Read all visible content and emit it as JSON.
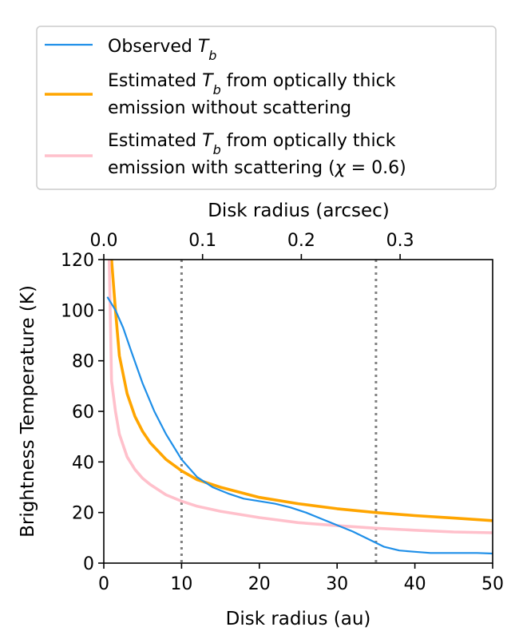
{
  "chart_data": {
    "type": "line",
    "xlabel": "Disk radius (au)",
    "ylabel": "Brightness Temperature (K)",
    "xlim": [
      0,
      50
    ],
    "ylim": [
      0,
      120
    ],
    "x_ticks": [
      0,
      10,
      20,
      30,
      40,
      50
    ],
    "x_tick_labels": [
      "0",
      "10",
      "20",
      "30",
      "40",
      "50"
    ],
    "y_ticks": [
      0,
      20,
      40,
      60,
      80,
      100,
      120
    ],
    "y_tick_labels": [
      "0",
      "20",
      "40",
      "60",
      "80",
      "100",
      "120"
    ],
    "secondary_x_axis": {
      "label": "Disk radius (arcsec)",
      "au_per_arcsec": 127,
      "ticks": [
        0.0,
        0.1,
        0.2,
        0.3
      ],
      "tick_labels": [
        "0.0",
        "0.1",
        "0.2",
        "0.3"
      ]
    },
    "vertical_lines": [
      10,
      35
    ],
    "legend_position": "above plot",
    "series": [
      {
        "name": "Observed T_b",
        "legend_lines": [
          [
            {
              "t": "Observed "
            },
            {
              "t": "T",
              "it": true
            },
            {
              "t": "b",
              "it": true,
              "sub": true
            }
          ]
        ],
        "color": "#1f8fe8",
        "style": "thin",
        "x": [
          0.5,
          1.5,
          2.5,
          3.5,
          5,
          6.5,
          8,
          10,
          12,
          14,
          16,
          18,
          20,
          22,
          24,
          26,
          28,
          30,
          32,
          34,
          36,
          38,
          40,
          42,
          44,
          46,
          48,
          50
        ],
        "y": [
          105,
          100,
          93,
          84,
          71,
          60,
          51,
          41,
          34,
          30,
          27.5,
          25.5,
          24.5,
          23.5,
          22,
          20,
          17.5,
          15,
          12.5,
          9.5,
          6.5,
          5,
          4.5,
          4,
          4,
          4,
          4,
          3.8
        ]
      },
      {
        "name": "Estimated T_b from optically thick emission without scattering",
        "legend_lines": [
          [
            {
              "t": "Estimated "
            },
            {
              "t": "T",
              "it": true
            },
            {
              "t": "b",
              "it": true,
              "sub": true
            },
            {
              "t": " from optically thick"
            }
          ],
          [
            {
              "t": " emission without scattering"
            }
          ]
        ],
        "color": "#ffa500",
        "style": "thick",
        "x": [
          1,
          1.5,
          2,
          3,
          4,
          5,
          6,
          8,
          10,
          12,
          15,
          20,
          25,
          30,
          35,
          40,
          45,
          50
        ],
        "y": [
          120,
          100,
          82,
          67,
          58,
          52,
          47.5,
          41,
          36.5,
          33,
          30,
          26,
          23.5,
          21.5,
          20,
          18.8,
          17.8,
          16.8
        ]
      },
      {
        "name": "Estimated T_b from optically thick emission with scattering (chi = 0.6)",
        "legend_lines": [
          [
            {
              "t": "Estimated "
            },
            {
              "t": "T",
              "it": true
            },
            {
              "t": "b",
              "it": true,
              "sub": true
            },
            {
              "t": " from optically thick"
            }
          ],
          [
            {
              "t": " emission with scattering ("
            },
            {
              "t": "χ",
              "it": true
            },
            {
              "t": " = 0.6)"
            }
          ]
        ],
        "color": "#ffc0cb",
        "style": "thick",
        "x": [
          0.7,
          1,
          1.5,
          2,
          3,
          4,
          5,
          6,
          8,
          10,
          12,
          15,
          20,
          25,
          30,
          35,
          40,
          45,
          50
        ],
        "y": [
          120,
          72,
          60,
          51,
          42,
          37,
          33.5,
          31,
          27,
          24.5,
          22.5,
          20.5,
          18,
          16,
          14.8,
          13.8,
          13,
          12.3,
          12
        ]
      }
    ]
  }
}
